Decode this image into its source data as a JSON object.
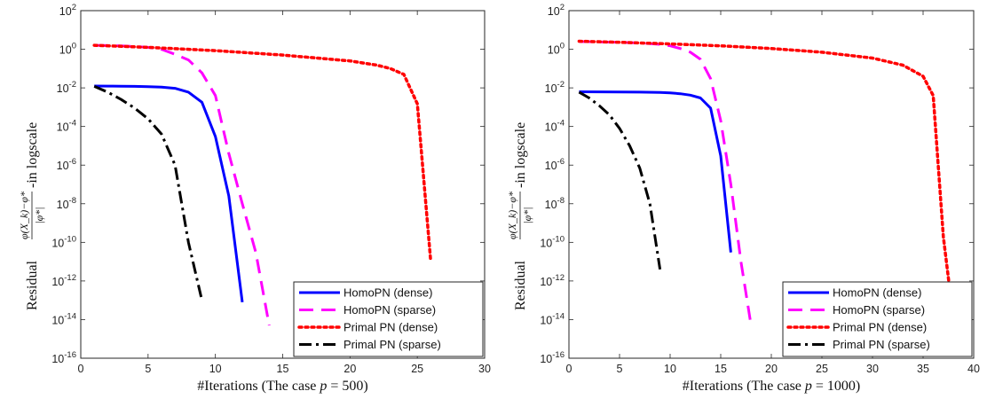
{
  "chart_data": [
    {
      "type": "line",
      "xlabel": "#Iterations (The case p = 500)",
      "xlabel_prefix": "#Iterations (The case ",
      "xlabel_var": "p",
      "xlabel_suffix": " = 500)",
      "ylabel": "Residual (φ(X_k) − φ*)/|φ*| -in logscale",
      "ylabel_prefix": "Residual",
      "ylabel_numerator": "φ(X_k)−φ*",
      "ylabel_denominator": "|φ*|",
      "ylabel_suffix": "-in logscale",
      "y_scale": "log",
      "xlim": [
        0,
        30
      ],
      "ylim": [
        1e-16,
        100
      ],
      "x_ticks": [
        0,
        5,
        10,
        15,
        20,
        25,
        30
      ],
      "y_tick_exponents": [
        2,
        0,
        -2,
        -4,
        -6,
        -8,
        -10,
        -12,
        -14,
        -16
      ],
      "legend_position": "bottom-right",
      "series": [
        {
          "name": "HomoPN (dense)",
          "color": "#0000ff",
          "dash": "solid",
          "x": [
            1,
            2,
            3,
            4,
            5,
            6,
            7,
            8,
            9,
            10,
            11,
            12
          ],
          "y": [
            0.0125,
            0.0124,
            0.0122,
            0.012,
            0.0116,
            0.011,
            0.0095,
            0.006,
            0.0018,
            3e-05,
            2.5e-08,
            8e-14
          ]
        },
        {
          "name": "HomoPN (sparse)",
          "color": "#ff00ff",
          "dash": "dashed",
          "x": [
            1,
            2,
            3,
            4,
            5,
            6,
            7,
            8,
            9,
            10,
            11,
            12,
            13,
            14
          ],
          "y": [
            1.6,
            1.55,
            1.5,
            1.4,
            1.25,
            1.0,
            0.55,
            0.28,
            0.06,
            0.004,
            4e-06,
            1e-08,
            3e-11,
            5e-15
          ]
        },
        {
          "name": "Primal PN (dense)",
          "color": "#ff0000",
          "dash": "dotted",
          "x": [
            1,
            5,
            10,
            15,
            20,
            22,
            23,
            24,
            25,
            26
          ],
          "y": [
            1.6,
            1.25,
            0.85,
            0.5,
            0.25,
            0.15,
            0.1,
            0.05,
            0.0015,
            1e-11
          ]
        },
        {
          "name": "Primal PN (sparse)",
          "color": "#000000",
          "dash": "dashdot",
          "x": [
            1,
            2,
            3,
            4,
            5,
            6,
            7,
            8,
            9
          ],
          "y": [
            0.012,
            0.006,
            0.0025,
            0.0009,
            0.00025,
            4e-05,
            1e-06,
            1e-10,
            1e-13
          ]
        }
      ]
    },
    {
      "type": "line",
      "xlabel": "#Iterations (The case p = 1000)",
      "xlabel_prefix": "#Iterations (The case ",
      "xlabel_var": "p",
      "xlabel_suffix": " = 1000)",
      "ylabel": "Residual (φ(X_k) − φ*)/|φ*| -in logscale",
      "ylabel_prefix": "Residual",
      "ylabel_numerator": "φ(X_k)−φ*",
      "ylabel_denominator": "|φ*|",
      "ylabel_suffix": "-in logscale",
      "y_scale": "log",
      "xlim": [
        0,
        40
      ],
      "ylim": [
        1e-16,
        100
      ],
      "x_ticks": [
        0,
        5,
        10,
        15,
        20,
        25,
        30,
        35,
        40
      ],
      "y_tick_exponents": [
        2,
        0,
        -2,
        -4,
        -6,
        -8,
        -10,
        -12,
        -14,
        -16
      ],
      "legend_position": "bottom-right",
      "series": [
        {
          "name": "HomoPN (dense)",
          "color": "#0000ff",
          "dash": "solid",
          "x": [
            1,
            3,
            5,
            7,
            9,
            10,
            11,
            12,
            13,
            14,
            15,
            16
          ],
          "y": [
            0.0063,
            0.0062,
            0.0061,
            0.006,
            0.0058,
            0.0055,
            0.005,
            0.0042,
            0.003,
            0.0009,
            3e-06,
            3e-11
          ]
        },
        {
          "name": "HomoPN (sparse)",
          "color": "#ff00ff",
          "dash": "dashed",
          "x": [
            1,
            3,
            5,
            7,
            9,
            10,
            11,
            12,
            13,
            14,
            15,
            16,
            17,
            18
          ],
          "y": [
            2.5,
            2.4,
            2.3,
            2.1,
            1.8,
            1.5,
            1.1,
            0.7,
            0.3,
            0.03,
            0.0002,
            1e-07,
            1e-11,
            5e-15
          ]
        },
        {
          "name": "Primal PN (dense)",
          "color": "#ff0000",
          "dash": "dotted",
          "x": [
            1,
            5,
            10,
            15,
            20,
            25,
            30,
            33,
            35,
            36,
            37,
            38
          ],
          "y": [
            2.6,
            2.3,
            1.9,
            1.5,
            1.1,
            0.7,
            0.35,
            0.15,
            0.04,
            0.004,
            2e-10,
            1e-14
          ]
        },
        {
          "name": "Primal PN (sparse)",
          "color": "#000000",
          "dash": "dashdot",
          "x": [
            1,
            2,
            3,
            4,
            5,
            6,
            7,
            8,
            9
          ],
          "y": [
            0.006,
            0.003,
            0.0012,
            0.0004,
            8e-05,
            1e-05,
            7e-07,
            1e-08,
            4e-12
          ]
        }
      ]
    }
  ]
}
